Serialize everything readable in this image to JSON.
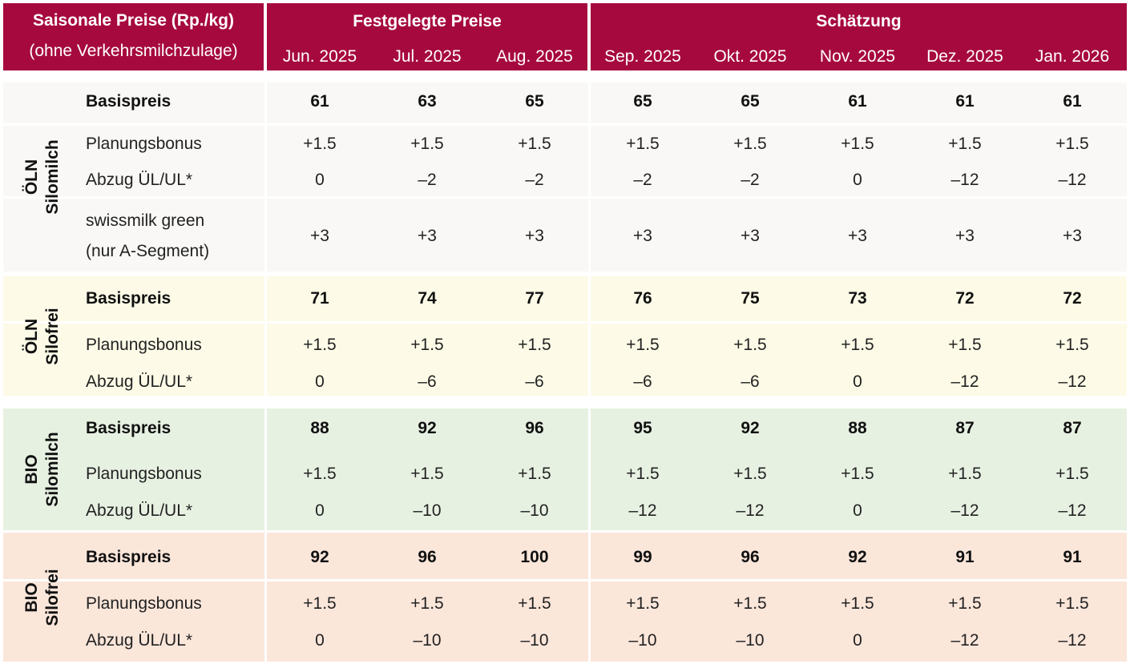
{
  "header": {
    "title_line1": "Saisonale Preise (Rp./kg)",
    "title_line2": "(ohne Verkehrsmilchzulage)",
    "group_fixed": "Festgelegte Preise",
    "group_estimate": "Schätzung",
    "months": [
      "Jun. 2025",
      "Jul. 2025",
      "Aug. 2025",
      "Sep. 2025",
      "Okt. 2025",
      "Nov. 2025",
      "Dez. 2025",
      "Jan. 2026"
    ]
  },
  "colors": {
    "header_bg": "#a6093d",
    "oln_silomilch_bg": "#f9f8f6",
    "oln_silofrei_bg": "#fdfbe7",
    "bio_silomilch_bg": "#e7f1e2",
    "bio_silofrei_bg": "#fbe6da"
  },
  "sections": [
    {
      "line1": "ÖLN",
      "line2": "Silomilch",
      "rows": [
        {
          "label": "Basispreis",
          "values": [
            "61",
            "63",
            "65",
            "65",
            "65",
            "61",
            "61",
            "61"
          ]
        },
        {
          "label": "Planungsbonus",
          "values": [
            "+1.5",
            "+1.5",
            "+1.5",
            "+1.5",
            "+1.5",
            "+1.5",
            "+1.5",
            "+1.5"
          ]
        },
        {
          "label": "Abzug ÜL/UL*",
          "values": [
            "0",
            "–2",
            "–2",
            "–2",
            "–2",
            "0",
            "–12",
            "–12"
          ]
        },
        {
          "label": "swissmilk green",
          "label2": "(nur A-Segment)",
          "values": [
            "+3",
            "+3",
            "+3",
            "+3",
            "+3",
            "+3",
            "+3",
            "+3"
          ]
        }
      ]
    },
    {
      "line1": "ÖLN",
      "line2": "Silofrei",
      "rows": [
        {
          "label": "Basispreis",
          "values": [
            "71",
            "74",
            "77",
            "76",
            "75",
            "73",
            "72",
            "72"
          ]
        },
        {
          "label": "Planungsbonus",
          "values": [
            "+1.5",
            "+1.5",
            "+1.5",
            "+1.5",
            "+1.5",
            "+1.5",
            "+1.5",
            "+1.5"
          ]
        },
        {
          "label": "Abzug ÜL/UL*",
          "values": [
            "0",
            "–6",
            "–6",
            "–6",
            "–6",
            "0",
            "–12",
            "–12"
          ]
        }
      ]
    },
    {
      "line1": "BIO",
      "line2": "Silomilch",
      "rows": [
        {
          "label": "Basispreis",
          "values": [
            "88",
            "92",
            "96",
            "95",
            "92",
            "88",
            "87",
            "87"
          ]
        },
        {
          "label": "Planungsbonus",
          "values": [
            "+1.5",
            "+1.5",
            "+1.5",
            "+1.5",
            "+1.5",
            "+1.5",
            "+1.5",
            "+1.5"
          ]
        },
        {
          "label": "Abzug ÜL/UL*",
          "values": [
            "0",
            "–10",
            "–10",
            "–12",
            "–12",
            "0",
            "–12",
            "–12"
          ]
        }
      ]
    },
    {
      "line1": "BIO",
      "line2": "Silofrei",
      "rows": [
        {
          "label": "Basispreis",
          "values": [
            "92",
            "96",
            "100",
            "99",
            "96",
            "92",
            "91",
            "91"
          ]
        },
        {
          "label": "Planungsbonus",
          "values": [
            "+1.5",
            "+1.5",
            "+1.5",
            "+1.5",
            "+1.5",
            "+1.5",
            "+1.5",
            "+1.5"
          ]
        },
        {
          "label": "Abzug ÜL/UL*",
          "values": [
            "0",
            "–10",
            "–10",
            "–10",
            "–10",
            "0",
            "–12",
            "–12"
          ]
        }
      ]
    }
  ]
}
